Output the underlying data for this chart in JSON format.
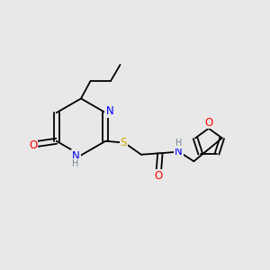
{
  "background_color": "#e8e8e8",
  "bond_color": "#000000",
  "atom_colors": {
    "N": "#0000ff",
    "O": "#ff0000",
    "S": "#ccaa00",
    "H": "#778899",
    "C": "#000000"
  },
  "font_size": 8.5,
  "bond_width": 1.3
}
